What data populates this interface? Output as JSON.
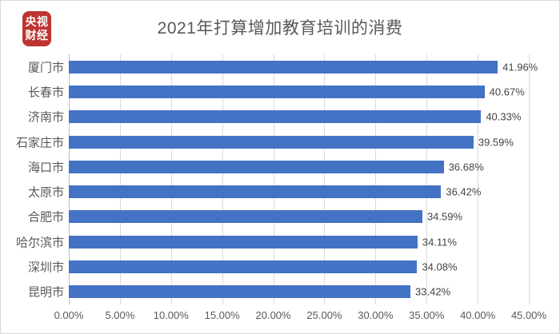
{
  "logo": {
    "line1": "央视",
    "line2": "财经",
    "bg_color": "#be3431"
  },
  "header": {
    "title": "2021年打算增加教育培训的消费"
  },
  "chart_data": {
    "type": "bar",
    "orientation": "horizontal",
    "title": "2021年打算增加教育培训的消费",
    "categories": [
      "厦门市",
      "长春市",
      "济南市",
      "石家庄市",
      "海口市",
      "太原市",
      "合肥市",
      "哈尔滨市",
      "深圳市",
      "昆明市"
    ],
    "values": [
      41.96,
      40.67,
      40.33,
      39.59,
      36.68,
      36.42,
      34.59,
      34.11,
      34.08,
      33.42
    ],
    "value_labels": [
      "41.96%",
      "40.67%",
      "40.33%",
      "39.59%",
      "36.68%",
      "36.42%",
      "34.59%",
      "34.11%",
      "34.08%",
      "33.42%"
    ],
    "x_ticks": [
      "0.00%",
      "5.00%",
      "10.00%",
      "15.00%",
      "20.00%",
      "25.00%",
      "30.00%",
      "35.00%",
      "40.00%",
      "45.00%"
    ],
    "xlim": [
      0,
      45
    ],
    "xlabel": "",
    "ylabel": "",
    "grid": "vertical",
    "legend_position": "none",
    "bar_color": "#4472c4",
    "gridline_color": "#d9d9d9",
    "axis_line_color": "#bfbfbf",
    "title_color": "#595959",
    "label_color": "#595959",
    "value_label_color": "#444444"
  }
}
